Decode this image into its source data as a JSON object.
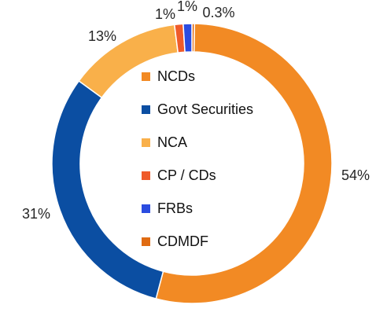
{
  "chart_data": {
    "type": "donut",
    "slices": [
      {
        "label": "NCDs",
        "value": 54,
        "display": "54%",
        "color": "#F28A24"
      },
      {
        "label": "Govt Securities",
        "value": 31,
        "display": "31%",
        "color": "#0B4EA2"
      },
      {
        "label": "NCA",
        "value": 13,
        "display": "13%",
        "color": "#F9B04A"
      },
      {
        "label": "CP / CDs",
        "value": 1,
        "display": "1%",
        "color": "#EF5B2A"
      },
      {
        "label": "FRBs",
        "value": 1,
        "display": "1%",
        "color": "#2B4CE0"
      },
      {
        "label": "CDMDF",
        "value": 0.3,
        "display": "0.3%",
        "color": "#E06B12"
      }
    ],
    "legend_position": "center"
  }
}
